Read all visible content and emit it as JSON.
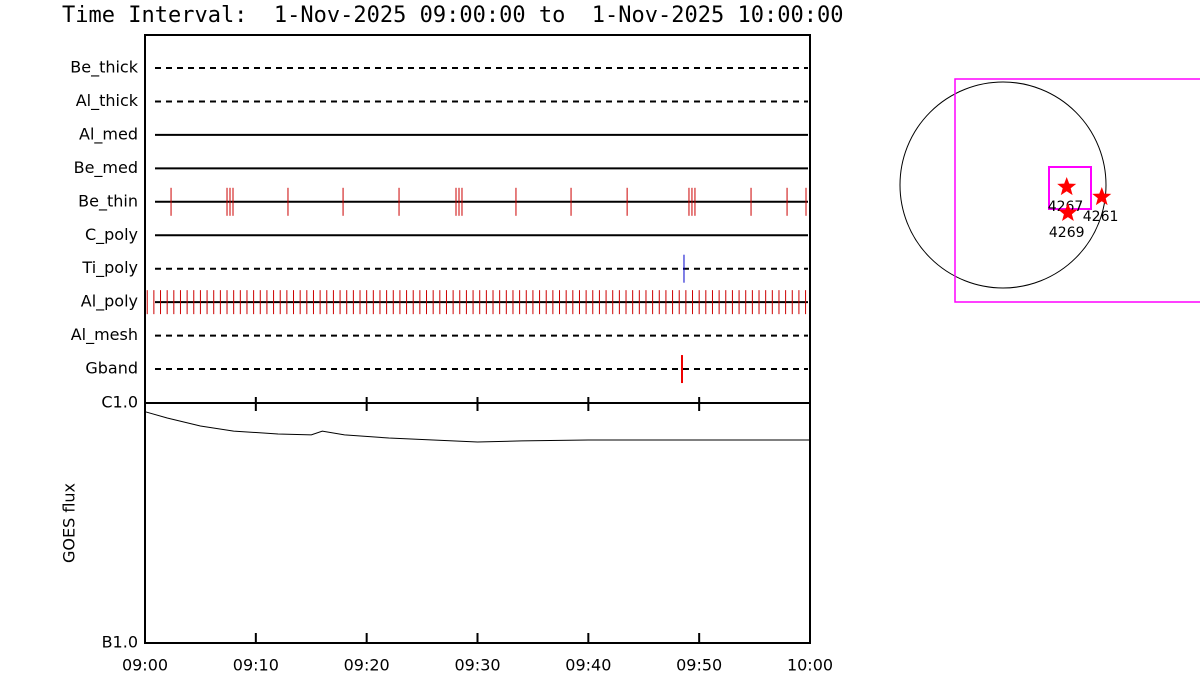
{
  "chart_data": [
    {
      "type": "timeline",
      "title": "Time Interval:  1-Nov-2025 09:00:00 to  1-Nov-2025 10:00:00",
      "xlim": [
        0,
        60
      ],
      "rows": [
        {
          "name": "Be_thick",
          "style": "dashed",
          "values": []
        },
        {
          "name": "Al_thick",
          "style": "dashed",
          "values": []
        },
        {
          "name": "Al_med",
          "style": "solid",
          "values": []
        },
        {
          "name": "Be_med",
          "style": "solid",
          "values": []
        },
        {
          "name": "Be_thin",
          "style": "solid",
          "color": "#cc0000",
          "values": [
            2.35,
            7.4,
            7.67,
            7.94,
            12.9,
            17.87,
            22.92,
            28.06,
            28.33,
            28.6,
            33.47,
            38.44,
            43.5,
            49.08,
            49.35,
            49.62,
            54.68,
            57.93,
            59.64
          ]
        },
        {
          "name": "C_poly",
          "style": "solid",
          "values": []
        },
        {
          "name": "Ti_poly",
          "style": "dashed",
          "color": "#0000cc",
          "values": [
            48.63
          ]
        },
        {
          "name": "Al_poly",
          "style": "solid",
          "color": "#cc0000",
          "values": [
            0.2,
            0.8,
            1.4,
            2.0,
            2.6,
            3.2,
            3.8,
            4.4,
            5.0,
            5.6,
            6.2,
            6.8,
            7.4,
            8.0,
            8.6,
            9.2,
            9.8,
            10.4,
            11.0,
            11.6,
            12.2,
            12.8,
            13.4,
            14.0,
            14.6,
            15.2,
            15.8,
            16.4,
            17.0,
            17.6,
            18.2,
            18.8,
            19.4,
            20.0,
            20.6,
            21.2,
            21.8,
            22.4,
            23.0,
            23.6,
            24.2,
            24.8,
            25.4,
            26.0,
            26.6,
            27.2,
            27.8,
            28.4,
            29.0,
            29.6,
            30.2,
            30.8,
            31.4,
            32.0,
            32.6,
            33.2,
            33.8,
            34.4,
            35.0,
            35.6,
            36.2,
            36.8,
            37.4,
            38.0,
            38.6,
            39.2,
            39.8,
            40.4,
            41.0,
            41.6,
            42.2,
            42.8,
            43.4,
            44.0,
            44.6,
            45.2,
            45.8,
            46.4,
            47.0,
            47.6,
            48.2,
            48.8,
            49.4,
            50.0,
            50.6,
            51.2,
            51.8,
            52.4,
            53.0,
            53.6,
            54.2,
            54.8,
            55.4,
            56.0,
            56.6,
            57.2,
            57.8,
            58.4,
            59.0,
            59.6
          ]
        },
        {
          "name": "Al_mesh",
          "style": "dashed",
          "values": []
        },
        {
          "name": "Gband",
          "style": "dashed",
          "color": "#ee0000",
          "values": [
            48.45
          ]
        }
      ]
    },
    {
      "type": "line",
      "y_label": "GOES flux",
      "log_scale": true,
      "color": "#000000",
      "x": [
        0,
        2,
        5,
        8,
        12,
        15,
        16,
        18,
        22,
        26,
        30,
        34,
        40,
        45,
        50,
        55,
        60
      ],
      "values": [
        9.2e-07,
        8.66e-07,
        8.02e-07,
        7.64e-07,
        7.43e-07,
        7.36e-07,
        7.64e-07,
        7.36e-07,
        7.15e-07,
        7.01e-07,
        6.88e-07,
        6.95e-07,
        7.01e-07,
        7.01e-07,
        7.01e-07,
        7.01e-07,
        7.01e-07
      ],
      "xlim": [
        0,
        60
      ],
      "xticks": [
        {
          "value": 0,
          "label": "09:00"
        },
        {
          "value": 10,
          "label": "09:10"
        },
        {
          "value": 20,
          "label": "09:20"
        },
        {
          "value": 30,
          "label": "09:30"
        },
        {
          "value": 40,
          "label": "09:40"
        },
        {
          "value": 50,
          "label": "09:50"
        },
        {
          "value": 60,
          "label": "10:00"
        }
      ],
      "ylim": [
        1e-07,
        1e-06
      ],
      "yticks": [
        {
          "value": 1e-07,
          "label": "B1.0"
        },
        {
          "value": 1e-06,
          "label": "C1.0"
        }
      ]
    },
    {
      "type": "map",
      "color": "#ff0000",
      "labels": [
        "4267",
        "4261",
        "4269"
      ],
      "x": [
        600,
        930,
        611
      ],
      "y": [
        -19,
        -113,
        -263
      ]
    }
  ]
}
